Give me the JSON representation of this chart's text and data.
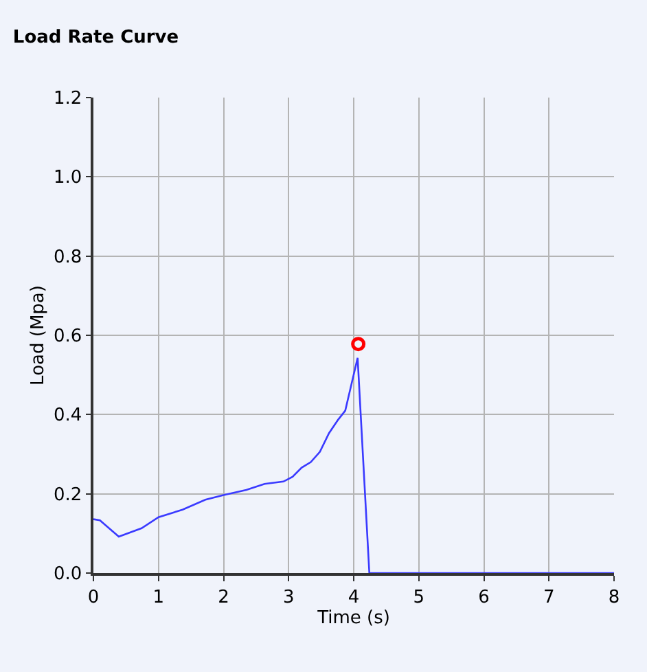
{
  "chart_data": {
    "type": "line",
    "title": "Load Rate Curve",
    "xlabel": "Time (s)",
    "ylabel": "Load (Mpa)",
    "xlim": [
      0,
      8
    ],
    "xticks": [
      0,
      1,
      2,
      3,
      4,
      5,
      6,
      7,
      8
    ],
    "ylim": [
      0,
      1.2
    ],
    "yticks": [
      {
        "value": 0,
        "label": "0.0"
      },
      0.2,
      0.4,
      0.6,
      0.8,
      {
        "value": 1,
        "label": "1.0"
      },
      1.2
    ],
    "grid": true,
    "series": [
      {
        "color": "#3a3aff",
        "marker": "none",
        "line_style": "solid",
        "x": [
          0,
          0.1,
          0.39,
          0.74,
          1.0,
          1.37,
          1.72,
          2.0,
          2.35,
          2.63,
          2.92,
          3.06,
          3.2,
          3.34,
          3.48,
          3.62,
          3.76,
          3.87,
          4.06,
          4.24,
          8
        ],
        "values": [
          0.136,
          0.133,
          0.092,
          0.113,
          0.141,
          0.16,
          0.185,
          0.197,
          0.21,
          0.225,
          0.231,
          0.243,
          0.266,
          0.28,
          0.306,
          0.353,
          0.387,
          0.41,
          0.543,
          0,
          0
        ]
      },
      {
        "type": "scatter",
        "color": "#ff0000",
        "marker": "circle",
        "x": [
          4.07
        ],
        "values": [
          0.578
        ]
      }
    ]
  }
}
